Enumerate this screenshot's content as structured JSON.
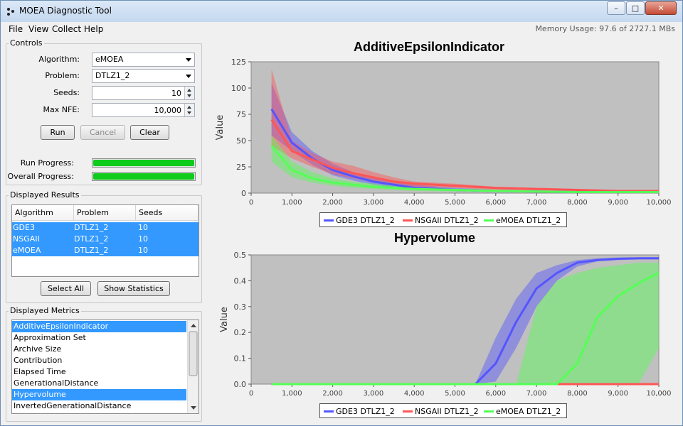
{
  "window": {
    "title": "MOEA Diagnostic Tool",
    "min": "–",
    "max": "□",
    "close": "✕"
  },
  "menu": {
    "items": [
      "File",
      "View",
      "Collect",
      "Help"
    ],
    "memory": "Memory Usage: 97.6 of 2727.1 MBs"
  },
  "controls": {
    "title": "Controls",
    "algorithm_label": "Algorithm:",
    "algorithm_value": "eMOEA",
    "problem_label": "Problem:",
    "problem_value": "DTLZ1_2",
    "seeds_label": "Seeds:",
    "seeds_value": "10",
    "maxnfe_label": "Max NFE:",
    "maxnfe_value": "10,000",
    "run": "Run",
    "cancel": "Cancel",
    "clear": "Clear",
    "run_progress_label": "Run Progress:",
    "overall_progress_label": "Overall Progress:",
    "run_progress": 1.0,
    "overall_progress": 1.0
  },
  "results": {
    "title": "Displayed Results",
    "columns": [
      "Algorithm",
      "Problem",
      "Seeds"
    ],
    "rows": [
      [
        "GDE3",
        "DTLZ1_2",
        "10"
      ],
      [
        "NSGAII",
        "DTLZ1_2",
        "10"
      ],
      [
        "eMOEA",
        "DTLZ1_2",
        "10"
      ]
    ],
    "select_all": "Select All",
    "show_statistics": "Show Statistics"
  },
  "metrics": {
    "title": "Displayed Metrics",
    "items": [
      {
        "label": "AdditiveEpsilonIndicator",
        "selected": true
      },
      {
        "label": "Approximation Set",
        "selected": false
      },
      {
        "label": "Archive Size",
        "selected": false
      },
      {
        "label": "Contribution",
        "selected": false
      },
      {
        "label": "Elapsed Time",
        "selected": false
      },
      {
        "label": "GenerationalDistance",
        "selected": false
      },
      {
        "label": "Hypervolume",
        "selected": true
      },
      {
        "label": "InvertedGenerationalDistance",
        "selected": false
      }
    ]
  },
  "colors": {
    "gde3": "#5555ff",
    "nsgaii": "#ff5555",
    "emoea": "#55ff55",
    "plot_bg": "#c0c0c0",
    "selection": "#3399ff"
  },
  "chart_data": [
    {
      "type": "line",
      "title": "AdditiveEpsilonIndicator",
      "xlabel": "",
      "ylabel": "Value",
      "xlim": [
        0,
        10000
      ],
      "ylim": [
        0,
        125
      ],
      "xticks": [
        "0",
        "1,000",
        "2,000",
        "3,000",
        "4,000",
        "5,000",
        "6,000",
        "7,000",
        "8,000",
        "9,000",
        "10,000"
      ],
      "yticks": [
        "0",
        "25",
        "50",
        "75",
        "100",
        "125"
      ],
      "x": [
        500,
        1000,
        1500,
        2000,
        2500,
        3000,
        3500,
        4000,
        5000,
        6000,
        7000,
        8000,
        9000,
        10000
      ],
      "series": [
        {
          "name": "GDE3 DTLZ1_2",
          "values": [
            80,
            48,
            33,
            22,
            16,
            11,
            8,
            5,
            3,
            2,
            1.5,
            1,
            1,
            1
          ],
          "lower": [
            55,
            40,
            27,
            17,
            12,
            8,
            5,
            3,
            2,
            1,
            1,
            0.5,
            0.5,
            0.5
          ],
          "upper": [
            105,
            58,
            40,
            28,
            20,
            15,
            11,
            8,
            5,
            3,
            2,
            1.5,
            1.5,
            1.5
          ]
        },
        {
          "name": "NSGAII DTLZ1_2",
          "values": [
            70,
            40,
            32,
            24,
            19,
            15,
            11,
            9,
            7,
            5,
            4,
            3,
            2,
            2
          ],
          "lower": [
            45,
            33,
            25,
            18,
            14,
            11,
            8,
            6,
            5,
            3,
            2.5,
            2,
            1.5,
            1.5
          ],
          "upper": [
            118,
            50,
            38,
            30,
            26,
            20,
            15,
            11,
            9,
            6,
            5,
            4,
            3,
            3
          ]
        },
        {
          "name": "eMOEA DTLZ1_2",
          "values": [
            45,
            22,
            14,
            10,
            8,
            6,
            5,
            4,
            3,
            2,
            1.5,
            1,
            1,
            1
          ],
          "lower": [
            30,
            15,
            10,
            7,
            5,
            4,
            3,
            2,
            1.5,
            1,
            1,
            0.5,
            0.5,
            0.5
          ],
          "upper": [
            55,
            30,
            20,
            14,
            11,
            9,
            7,
            5,
            4,
            3,
            2,
            1.5,
            1.5,
            1.5
          ]
        }
      ]
    },
    {
      "type": "line",
      "title": "Hypervolume",
      "xlabel": "",
      "ylabel": "Value",
      "xlim": [
        0,
        10000
      ],
      "ylim": [
        0,
        0.5
      ],
      "xticks": [
        "0",
        "1,000",
        "2,000",
        "3,000",
        "4,000",
        "5,000",
        "6,000",
        "7,000",
        "8,000",
        "9,000",
        "10,000"
      ],
      "yticks": [
        "0.0",
        "0.1",
        "0.2",
        "0.3",
        "0.4",
        "0.5"
      ],
      "x": [
        500,
        5500,
        6000,
        6500,
        7000,
        7500,
        8000,
        8500,
        9000,
        9500,
        10000
      ],
      "series": [
        {
          "name": "GDE3 DTLZ1_2",
          "values": [
            0,
            0,
            0.08,
            0.24,
            0.37,
            0.43,
            0.47,
            0.48,
            0.485,
            0.487,
            0.487
          ],
          "lower": [
            0,
            0,
            0.01,
            0.14,
            0.3,
            0.4,
            0.455,
            0.475,
            0.48,
            0.482,
            0.482
          ],
          "upper": [
            0,
            0,
            0.18,
            0.33,
            0.43,
            0.46,
            0.48,
            0.487,
            0.49,
            0.49,
            0.49
          ]
        },
        {
          "name": "NSGAII DTLZ1_2",
          "values": [
            0,
            0,
            0,
            0,
            0,
            0,
            0,
            0,
            0,
            0,
            0
          ],
          "lower": [
            0,
            0,
            0,
            0,
            0,
            0,
            0,
            0,
            0,
            0,
            0
          ],
          "upper": [
            0,
            0,
            0,
            0,
            0,
            0,
            0,
            0,
            0,
            0,
            0
          ]
        },
        {
          "name": "eMOEA DTLZ1_2",
          "values": [
            0,
            0,
            0,
            0,
            0,
            0,
            0.08,
            0.26,
            0.34,
            0.39,
            0.43
          ],
          "lower": [
            0,
            0,
            0,
            0,
            0,
            0,
            0,
            0,
            0,
            0,
            0.14
          ],
          "upper": [
            0,
            0,
            0,
            0,
            0.3,
            0.4,
            0.43,
            0.45,
            0.46,
            0.47,
            0.47
          ]
        }
      ]
    }
  ]
}
